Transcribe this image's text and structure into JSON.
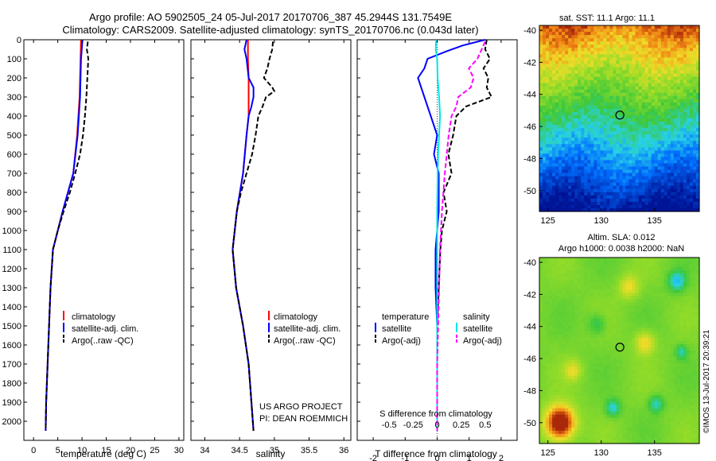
{
  "title": {
    "line1": "Argo profile: AO 5902505_24 05-Jul-2017 20170706_387 45.2944S 131.7549E",
    "line2": "Climatology: CARS2009. Satellite-adjusted climatology: synTS_20170706.nc (0.043d later)"
  },
  "colors": {
    "climatology": "#ff0000",
    "satellite": "#0000ff",
    "argo": "#000000",
    "sal_satellite": "#00e5e5",
    "sal_argo": "#ff00ff"
  },
  "chart_data": [
    {
      "id": "temperature",
      "type": "line",
      "xlabel": "temperature (deg C)",
      "ylabel": "",
      "xlim": [
        -2,
        31
      ],
      "ylim": [
        2100,
        0
      ],
      "xticks": [
        0,
        5,
        10,
        15,
        20,
        25,
        30
      ],
      "yticks": [
        0,
        100,
        200,
        300,
        400,
        500,
        600,
        700,
        800,
        900,
        1000,
        1100,
        1200,
        1300,
        1400,
        1500,
        1600,
        1700,
        1800,
        1900,
        2000
      ],
      "legend": {
        "position": "lower-center",
        "entries": [
          "climatology",
          "satellite-adj. clim.",
          "Argo(..raw -QC)"
        ]
      },
      "series": [
        {
          "name": "climatology",
          "color": "#ff0000",
          "style": "solid",
          "depth": [
            0,
            100,
            300,
            500,
            700,
            900,
            1100,
            1300,
            1500,
            1700,
            1900,
            2050
          ],
          "values": [
            9.8,
            9.7,
            9.5,
            9.0,
            8.2,
            6.0,
            4.0,
            3.5,
            3.2,
            2.9,
            2.6,
            2.5
          ]
        },
        {
          "name": "satellite-adj. clim.",
          "color": "#0000ff",
          "style": "solid",
          "depth": [
            0,
            100,
            300,
            500,
            700,
            900,
            1100,
            1300,
            1500,
            1700,
            1900,
            2050
          ],
          "values": [
            10.1,
            9.8,
            9.6,
            9.1,
            8.2,
            6.0,
            4.0,
            3.5,
            3.2,
            2.9,
            2.6,
            2.5
          ]
        },
        {
          "name": "Argo(..raw -QC)",
          "color": "#000000",
          "style": "dash",
          "depth": [
            10,
            50,
            100,
            200,
            300,
            400,
            500,
            600,
            700,
            800,
            900,
            1000,
            1100,
            1300,
            1500,
            1700,
            1900,
            2050
          ],
          "values": [
            11.2,
            11.0,
            11.3,
            11.1,
            10.9,
            10.6,
            10.2,
            9.6,
            8.6,
            7.5,
            6.2,
            5.0,
            4.0,
            3.5,
            3.2,
            2.9,
            2.6,
            2.5
          ]
        }
      ]
    },
    {
      "id": "salinity",
      "type": "line",
      "xlabel": "salinity",
      "xlim": [
        33.8,
        36.1
      ],
      "ylim": [
        2100,
        0
      ],
      "xticks": [
        34,
        34.5,
        35,
        35.5,
        36
      ],
      "xticklabels": [
        "34",
        "34.5",
        "35",
        "35.5",
        "36"
      ],
      "legend": {
        "position": "lower-center",
        "entries": [
          "climatology",
          "satellite-adj. clim.",
          "Argo(..raw -QC)"
        ]
      },
      "annotation": {
        "line1": "US ARGO PROJECT",
        "line2": "PI: DEAN ROEMMICH"
      },
      "series": [
        {
          "name": "climatology",
          "color": "#ff0000",
          "style": "solid",
          "depth": [
            0,
            100,
            200,
            300,
            400,
            500,
            700,
            900,
            1100,
            1300,
            1500,
            1700,
            1900,
            2050
          ],
          "values": [
            34.62,
            34.62,
            34.63,
            34.63,
            34.63,
            34.6,
            34.55,
            34.46,
            34.4,
            34.45,
            34.55,
            34.63,
            34.67,
            34.7
          ]
        },
        {
          "name": "satellite-adj. clim.",
          "color": "#0000ff",
          "style": "solid",
          "depth": [
            0,
            50,
            100,
            200,
            250,
            300,
            350,
            400,
            500,
            700,
            900,
            1100,
            1300,
            1500,
            1700,
            1900,
            2050
          ],
          "values": [
            34.6,
            34.57,
            34.6,
            34.63,
            34.7,
            34.7,
            34.67,
            34.63,
            34.6,
            34.55,
            34.46,
            34.4,
            34.45,
            34.55,
            34.63,
            34.67,
            34.7
          ]
        },
        {
          "name": "Argo(..raw -QC)",
          "color": "#000000",
          "style": "dash",
          "depth": [
            10,
            50,
            100,
            150,
            200,
            250,
            270,
            300,
            350,
            400,
            450,
            500,
            600,
            700,
            800,
            900,
            1000,
            1100,
            1300,
            1500,
            1700,
            1900,
            2050
          ],
          "values": [
            34.98,
            34.97,
            34.93,
            34.9,
            34.85,
            34.97,
            35.0,
            34.88,
            34.83,
            34.77,
            34.75,
            34.73,
            34.68,
            34.6,
            34.52,
            34.46,
            34.43,
            34.4,
            34.45,
            34.55,
            34.63,
            34.67,
            34.7
          ]
        }
      ]
    },
    {
      "id": "difference",
      "type": "line",
      "xlabel": "T difference from climatology",
      "xlabel_top": "S difference from climatology",
      "xlim": [
        -2.5,
        2.5
      ],
      "ylim": [
        2100,
        0
      ],
      "xticks": [
        -2,
        -1,
        0,
        1,
        2
      ],
      "xticklabels": [
        "-2",
        "-1",
        "0",
        "1",
        "2"
      ],
      "s_ticks": [
        -0.5,
        -0.25,
        0,
        0.25,
        0.5
      ],
      "s_ticklabels": [
        "-0.5",
        "-0.25",
        "0",
        "0.25",
        "0.5"
      ],
      "s_scale": 3.0,
      "legend": {
        "position": "lower-center",
        "header_t": "temperature",
        "header_s": "salinity",
        "entries_t": [
          "satellite",
          "Argo(-adj)"
        ],
        "entries_s": [
          "satellite",
          "Argo(-adj)"
        ]
      },
      "series": [
        {
          "name": "T satellite",
          "color": "#0000ff",
          "style": "solid",
          "depth": [
            0,
            30,
            60,
            100,
            150,
            200,
            300,
            400,
            500,
            600,
            700,
            900,
            1100,
            1300,
            1500,
            1700,
            1900,
            2050
          ],
          "values": [
            1.5,
            0.8,
            0.3,
            -0.3,
            -0.4,
            -0.6,
            -0.4,
            -0.2,
            0.0,
            -0.1,
            0.05,
            0.05,
            -0.05,
            -0.05,
            0.0,
            0.0,
            0.0,
            0.0
          ]
        },
        {
          "name": "T Argo(-adj)",
          "color": "#000000",
          "style": "dash",
          "depth": [
            0,
            50,
            100,
            150,
            200,
            250,
            300,
            350,
            400,
            500,
            600,
            700,
            800,
            900,
            1000,
            1100,
            1300,
            1500,
            1700,
            1900,
            2050
          ],
          "values": [
            1.55,
            1.5,
            1.65,
            1.45,
            1.6,
            1.55,
            1.7,
            0.9,
            0.6,
            0.5,
            0.35,
            0.45,
            0.2,
            0.3,
            0.15,
            0.1,
            0.05,
            0.0,
            0.0,
            0.0,
            0.0
          ]
        },
        {
          "name": "S satellite",
          "color": "#00e5e5",
          "style": "solid",
          "depth": [
            0,
            50,
            100,
            200,
            300,
            400,
            500,
            600,
            700,
            900,
            1100,
            1300,
            1500,
            1700,
            1900,
            2050
          ],
          "values": [
            -0.01,
            -0.015,
            0.0,
            0.005,
            0.02,
            0.03,
            0.02,
            0.01,
            0.005,
            0.0,
            0.0,
            0.0,
            0.0,
            0.0,
            0.0,
            0.0
          ]
        },
        {
          "name": "S Argo(-adj)",
          "color": "#ff00ff",
          "style": "dash",
          "depth": [
            10,
            100,
            150,
            200,
            250,
            300,
            350,
            400,
            500,
            600,
            700,
            900,
            1100,
            1300,
            1500,
            1700,
            1900,
            2050
          ],
          "values": [
            0.5,
            0.42,
            0.33,
            0.38,
            0.35,
            0.22,
            0.2,
            0.15,
            0.12,
            0.1,
            0.08,
            0.05,
            0.03,
            0.02,
            0.01,
            0.0,
            0.0,
            0.0
          ]
        }
      ]
    },
    {
      "id": "sst-map",
      "type": "heatmap",
      "title": "sat. SST: 11.1  Argo: 11.1",
      "xlim": [
        124.2,
        139.2
      ],
      "ylim": [
        -51.3,
        -39.7
      ],
      "xticks": [
        125,
        130,
        135
      ],
      "yticks": [
        -40,
        -42,
        -44,
        -46,
        -48,
        -50
      ],
      "marker": {
        "lon": 131.75,
        "lat": -45.29
      }
    },
    {
      "id": "sla-map",
      "type": "heatmap",
      "title_line1": "Altim. SLA: 0.012",
      "title_line2": "Argo h1000: 0.0038 h2000: NaN",
      "xlim": [
        124.2,
        139.2
      ],
      "ylim": [
        -51.3,
        -39.7
      ],
      "xticks": [
        125,
        130,
        135
      ],
      "yticks": [
        -40,
        -42,
        -44,
        -46,
        -48,
        -50
      ],
      "marker": {
        "lon": 131.75,
        "lat": -45.29
      }
    }
  ],
  "watermark": "©IMOS 13-Jul-2017 20:39:21"
}
